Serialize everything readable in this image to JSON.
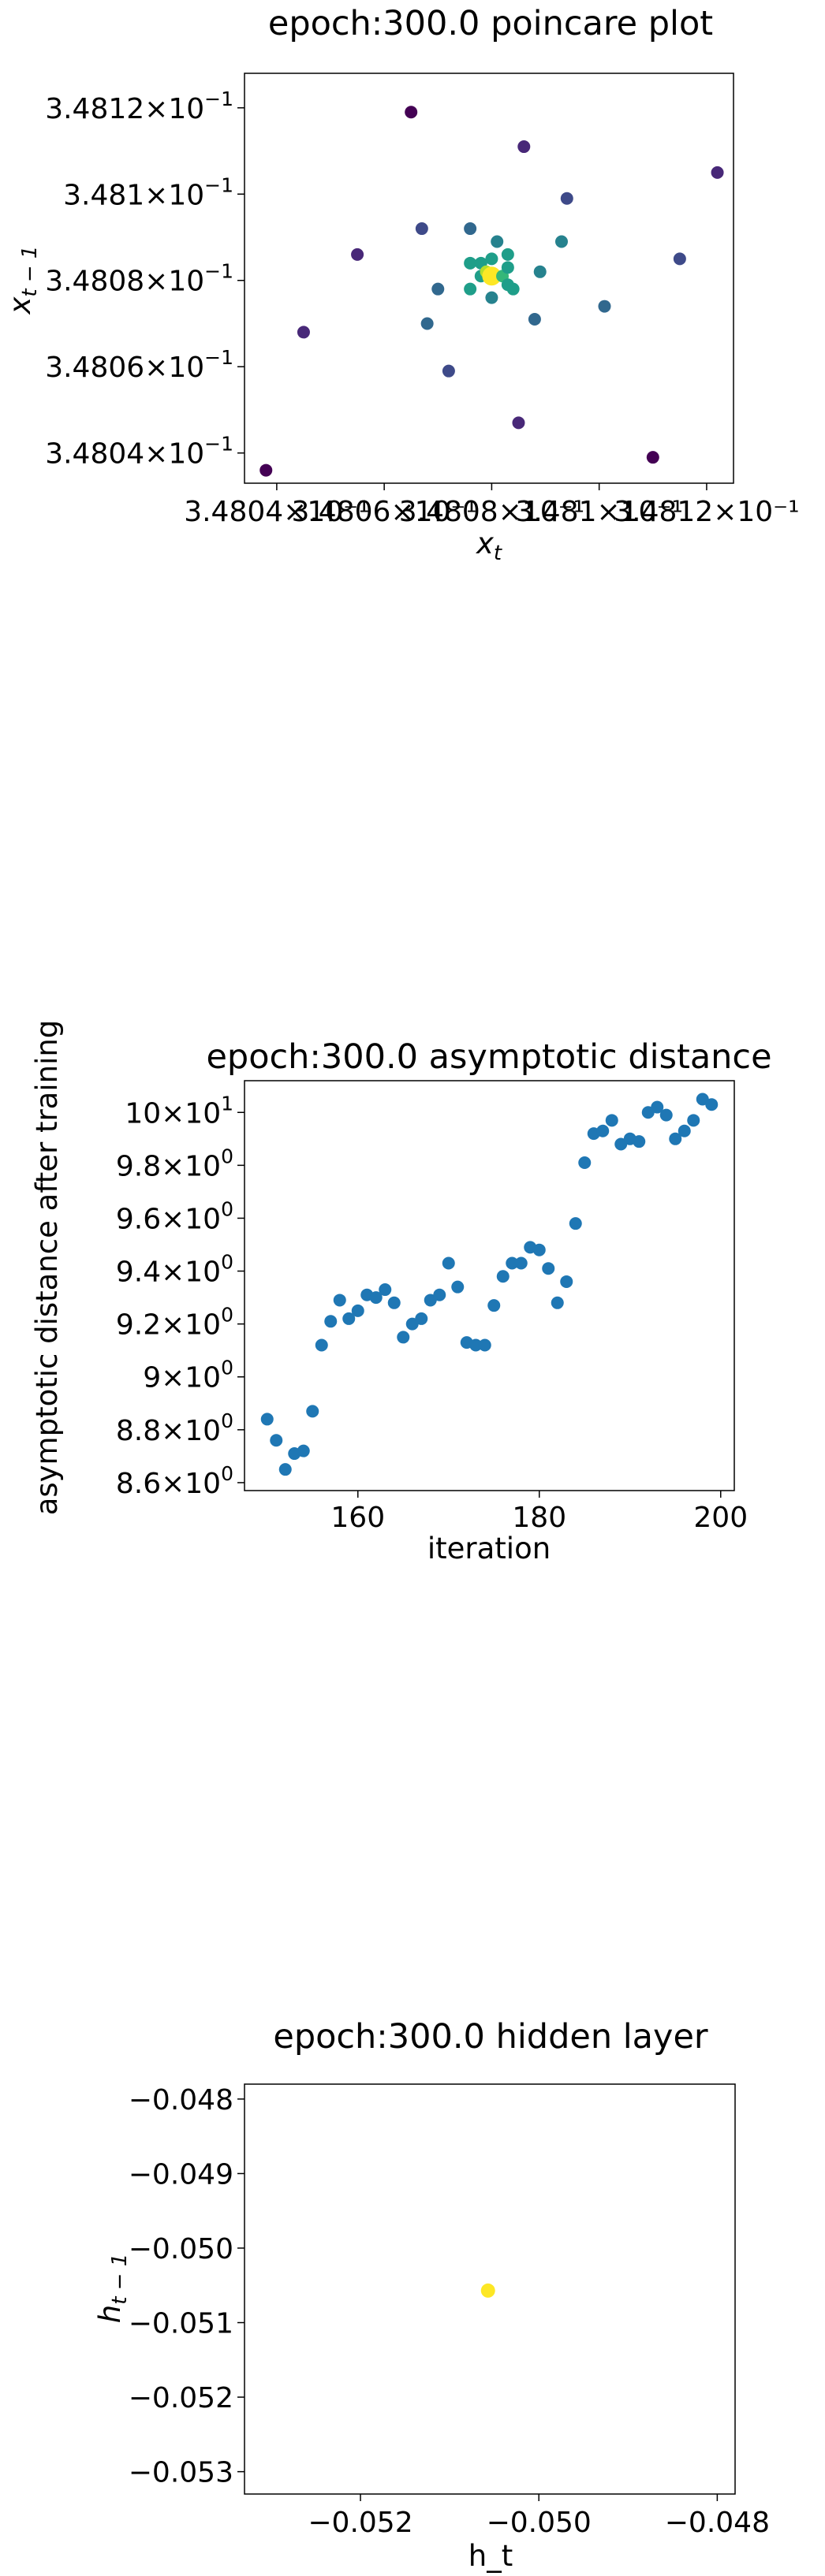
{
  "chart_data": [
    {
      "type": "scatter",
      "title": "epoch:300.0 poincare plot",
      "xlabel": "x_t",
      "ylabel": "x_{t-1}",
      "xlim": [
        0.348034,
        0.348125
      ],
      "ylim": [
        0.348033,
        0.348128
      ],
      "x_tick_labels": [
        "3.4804×10⁻¹",
        "3.4806×10⁻¹",
        "3.4808×10⁻¹",
        "3.481×10⁻¹",
        "3.4812×10⁻¹"
      ],
      "y_ticks": [
        {
          "value": 0.34804,
          "label_base": "3.4804",
          "label_exp": "-1"
        },
        {
          "value": 0.34806,
          "label_base": "3.4806",
          "label_exp": "-1"
        },
        {
          "value": 0.34808,
          "label_base": "3.4808",
          "label_exp": "-1"
        },
        {
          "value": 0.3481,
          "label_base": "3.481",
          "label_exp": "-1"
        },
        {
          "value": 0.34812,
          "label_base": "3.4812",
          "label_exp": "-1"
        }
      ],
      "points": [
        {
          "x": 0.348038,
          "y": 0.348036,
          "c": 0.0
        },
        {
          "x": 0.348045,
          "y": 0.348068,
          "c": 0.1
        },
        {
          "x": 0.348055,
          "y": 0.348086,
          "c": 0.15
        },
        {
          "x": 0.348065,
          "y": 0.348119,
          "c": 0.05
        },
        {
          "x": 0.348067,
          "y": 0.348092,
          "c": 0.25
        },
        {
          "x": 0.348068,
          "y": 0.34807,
          "c": 0.3
        },
        {
          "x": 0.34807,
          "y": 0.348078,
          "c": 0.35
        },
        {
          "x": 0.348072,
          "y": 0.348059,
          "c": 0.2
        },
        {
          "x": 0.348076,
          "y": 0.348092,
          "c": 0.35
        },
        {
          "x": 0.348076,
          "y": 0.348084,
          "c": 0.5
        },
        {
          "x": 0.348076,
          "y": 0.348078,
          "c": 0.5
        },
        {
          "x": 0.348078,
          "y": 0.348081,
          "c": 0.55
        },
        {
          "x": 0.348078,
          "y": 0.348084,
          "c": 0.6
        },
        {
          "x": 0.348079,
          "y": 0.348082,
          "c": 0.85
        },
        {
          "x": 0.34808,
          "y": 0.348081,
          "c": 1.0
        },
        {
          "x": 0.34808,
          "y": 0.348076,
          "c": 0.45
        },
        {
          "x": 0.34808,
          "y": 0.348085,
          "c": 0.5
        },
        {
          "x": 0.348081,
          "y": 0.348089,
          "c": 0.4
        },
        {
          "x": 0.348082,
          "y": 0.348081,
          "c": 0.65
        },
        {
          "x": 0.348083,
          "y": 0.348083,
          "c": 0.55
        },
        {
          "x": 0.348083,
          "y": 0.348086,
          "c": 0.55
        },
        {
          "x": 0.348083,
          "y": 0.348079,
          "c": 0.55
        },
        {
          "x": 0.348084,
          "y": 0.348078,
          "c": 0.5
        },
        {
          "x": 0.348085,
          "y": 0.348047,
          "c": 0.1
        },
        {
          "x": 0.348086,
          "y": 0.348111,
          "c": 0.15
        },
        {
          "x": 0.348088,
          "y": 0.348071,
          "c": 0.35
        },
        {
          "x": 0.348089,
          "y": 0.348082,
          "c": 0.45
        },
        {
          "x": 0.348093,
          "y": 0.348089,
          "c": 0.4
        },
        {
          "x": 0.348094,
          "y": 0.348099,
          "c": 0.25
        },
        {
          "x": 0.348101,
          "y": 0.348074,
          "c": 0.3
        },
        {
          "x": 0.34811,
          "y": 0.348039,
          "c": 0.05
        },
        {
          "x": 0.348115,
          "y": 0.348085,
          "c": 0.2
        },
        {
          "x": 0.348122,
          "y": 0.348105,
          "c": 0.1
        }
      ]
    },
    {
      "type": "scatter",
      "title": "epoch:300.0 asymptotic distance",
      "xlabel": "iteration",
      "ylabel": "asymptotic distance after training",
      "xlim": [
        147.5,
        201.5
      ],
      "ylim": [
        8.57,
        10.12
      ],
      "x_ticks": [
        160,
        180,
        200
      ],
      "y_ticks": [
        {
          "value": 8.6,
          "label_base": "8.6",
          "label_exp": "0"
        },
        {
          "value": 8.8,
          "label_base": "8.8",
          "label_exp": "0"
        },
        {
          "value": 9.0,
          "label_base": "9",
          "label_exp": "0"
        },
        {
          "value": 9.2,
          "label_base": "9.2",
          "label_exp": "0"
        },
        {
          "value": 9.4,
          "label_base": "9.4",
          "label_exp": "0"
        },
        {
          "value": 9.6,
          "label_base": "9.6",
          "label_exp": "0"
        },
        {
          "value": 9.8,
          "label_base": "9.8",
          "label_exp": "0"
        },
        {
          "value": 10.0,
          "label_base": "10",
          "label_exp": "1"
        }
      ],
      "x": [
        150,
        151,
        152,
        153,
        154,
        155,
        156,
        157,
        158,
        159,
        160,
        161,
        162,
        163,
        164,
        165,
        166,
        167,
        168,
        169,
        170,
        171,
        172,
        173,
        174,
        175,
        176,
        177,
        178,
        179,
        180,
        181,
        182,
        183,
        184,
        185,
        186,
        187,
        188,
        189,
        190,
        191,
        192,
        193,
        194,
        195,
        196,
        197,
        198,
        199
      ],
      "y": [
        8.84,
        8.76,
        8.65,
        8.71,
        8.72,
        8.87,
        9.12,
        9.21,
        9.29,
        9.22,
        9.25,
        9.31,
        9.3,
        9.33,
        9.28,
        9.15,
        9.2,
        9.22,
        9.29,
        9.31,
        9.43,
        9.34,
        9.13,
        9.12,
        9.12,
        9.27,
        9.38,
        9.43,
        9.43,
        9.49,
        9.48,
        9.41,
        9.28,
        9.36,
        9.58,
        9.81,
        9.92,
        9.93,
        9.97,
        9.88,
        9.9,
        9.89,
        10.0,
        10.02,
        9.99,
        9.9,
        9.93,
        9.97,
        10.05,
        10.03
      ]
    },
    {
      "type": "scatter",
      "title": "epoch:300.0 hidden layer",
      "xlabel": "h_t",
      "ylabel": "h_{t-1}",
      "xlim": [
        -0.0533,
        -0.0478
      ],
      "ylim": [
        -0.0533,
        -0.0478
      ],
      "x_ticks": [
        -0.052,
        -0.05,
        -0.048
      ],
      "x_tick_labels": [
        "−0.052",
        "−0.050",
        "−0.048"
      ],
      "y_ticks": [
        -0.053,
        -0.052,
        -0.051,
        -0.05,
        -0.049,
        -0.048
      ],
      "y_tick_labels": [
        "−0.053",
        "−0.052",
        "−0.051",
        "−0.050",
        "−0.049",
        "−0.048"
      ],
      "points": [
        {
          "x": -0.05057,
          "y": -0.05057
        }
      ],
      "point_color": "#fde725"
    }
  ],
  "colors": {
    "series_blue": "#1f77b4",
    "viridis": [
      "#440154",
      "#482878",
      "#3e4a89",
      "#31688e",
      "#26828e",
      "#1f9e89",
      "#35b779",
      "#6ece58",
      "#b5de2b",
      "#fde725"
    ]
  }
}
